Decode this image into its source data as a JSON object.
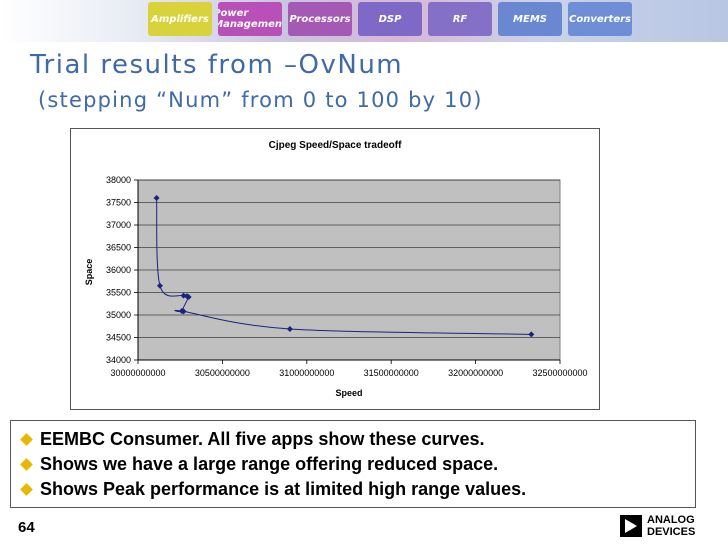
{
  "slide": {
    "title": "Trial results from –OvNum",
    "subtitle": "(stepping “Num” from 0 to 100 by 10)",
    "page_number": "64",
    "banner_tiles": [
      "Amplifiers",
      "Power Management",
      "Processors",
      "DSP",
      "RF",
      "MEMS",
      "Converters"
    ],
    "banner_colors": [
      "#d8d33a",
      "#b94fb8",
      "#a45ab5",
      "#7e69c7",
      "#8470c6",
      "#6a88d2",
      "#6e8fd6"
    ],
    "accent_color": "#3f6aa6",
    "bullet_color": "#e7b800",
    "logo": {
      "line1": "ANALOG",
      "line2": "DEVICES"
    }
  },
  "bullets": [
    "EEMBC Consumer.  All five apps show these curves.",
    "Shows we have a large range offering reduced space.",
    "Shows Peak performance is at limited high range values."
  ],
  "chart_data": {
    "type": "scatter",
    "title": "Cjpeg Speed/Space tradeoff",
    "xlabel": "Speed",
    "ylabel": "Space",
    "xlim": [
      30000000000,
      32500000000
    ],
    "ylim": [
      34000,
      38000
    ],
    "x_ticks": [
      "30000000000",
      "30500000000",
      "31000000000",
      "31500000000",
      "32000000000",
      "32500000000"
    ],
    "y_ticks": [
      "34000",
      "34500",
      "35000",
      "35500",
      "36000",
      "36500",
      "37000",
      "37500",
      "38000"
    ],
    "grid": true,
    "series": [
      {
        "points": [
          [
            30110000000,
            37600
          ],
          [
            30130000000,
            35650
          ],
          [
            30270000000,
            35430
          ],
          [
            30290000000,
            35420
          ],
          [
            30300000000,
            35400
          ],
          [
            30260000000,
            35090
          ],
          [
            30270000000,
            35080
          ],
          [
            30900000000,
            34690
          ],
          [
            32330000000,
            34570
          ]
        ]
      }
    ],
    "plot_color": "#c0c0c0",
    "line_color": "#1a237e"
  }
}
